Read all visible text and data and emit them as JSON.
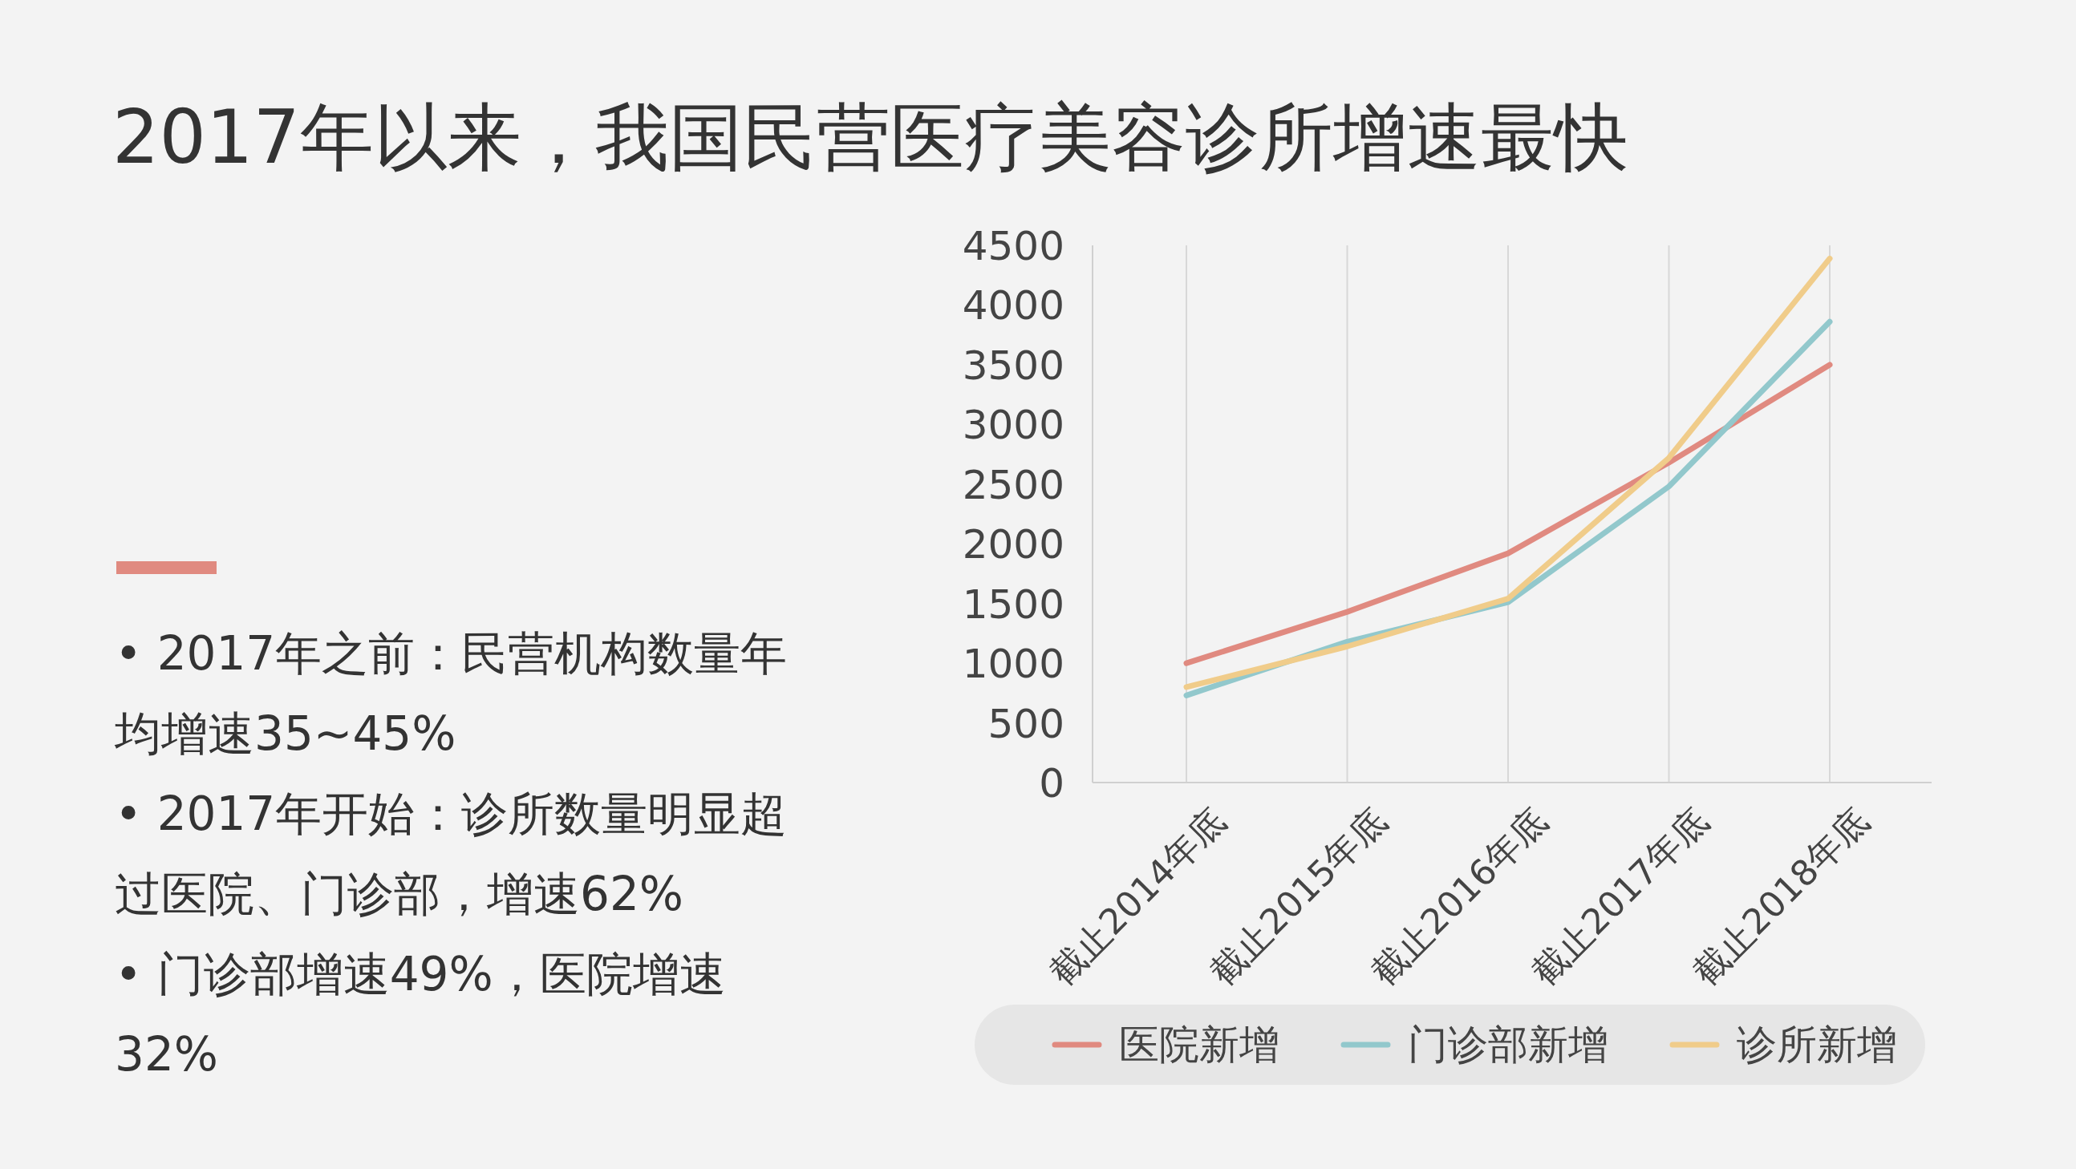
{
  "chart_data": {
    "type": "line",
    "title": "2017年以来，我国民营医疗美容诊所增速最快",
    "categories": [
      "截止2014年底",
      "截止2015年底",
      "截止2016年底",
      "截止2017年底",
      "截止2018年底"
    ],
    "series": [
      {
        "name": "医院新增",
        "color": "#e08a80",
        "values": [
          1000,
          1430,
          1920,
          2680,
          3500
        ]
      },
      {
        "name": "门诊部新增",
        "color": "#92c8cc",
        "values": [
          730,
          1180,
          1510,
          2480,
          3860
        ]
      },
      {
        "name": "诊所新增",
        "color": "#f0cc8a",
        "values": [
          800,
          1140,
          1540,
          2720,
          4390
        ]
      }
    ],
    "ylim": [
      0,
      4500
    ],
    "yticks": [
      0,
      500,
      1000,
      1500,
      2000,
      2500,
      3000,
      3500,
      4000,
      4500
    ],
    "grid": "x",
    "legend": "bottom",
    "marker": "none",
    "line_style": "solid",
    "annotations": [
      "• 2017年之前：民营机构数量年均增速35~45%",
      "• 2017年开始：诊所数量明显超过医院、门诊部，增速62%",
      "• 门诊部增速49%，医院增速32%"
    ]
  }
}
